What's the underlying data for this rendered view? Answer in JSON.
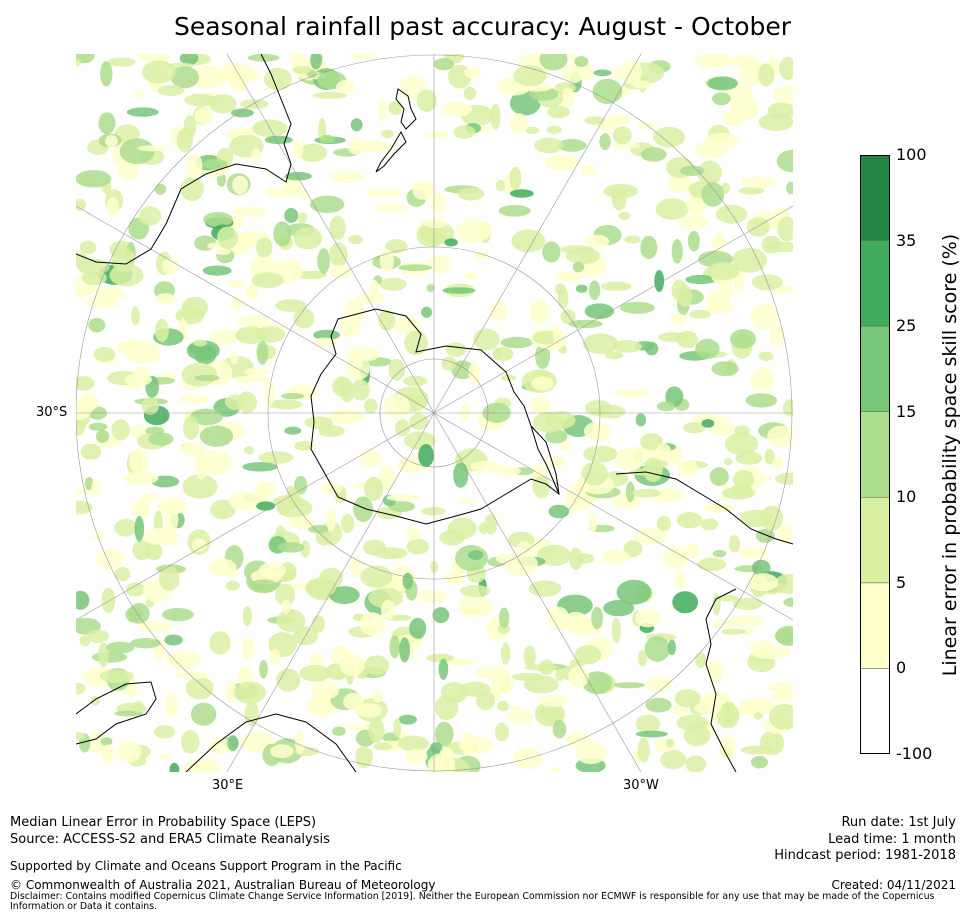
{
  "title": "Seasonal rainfall past accuracy: August - October",
  "map": {
    "projection": "south-polar stereographic",
    "labels": {
      "lat": "30°S",
      "lon_left": "30°E",
      "lon_right": "30°W"
    },
    "background": "#ffffff",
    "coastline_color": "#000000",
    "graticule_color": "#9a9a9a"
  },
  "colorbar": {
    "label": "Linear error in probability space skill score (%)",
    "ticks": [
      "100",
      "35",
      "25",
      "15",
      "10",
      "5",
      "0",
      "-100"
    ],
    "bins": [
      {
        "range": "-100 to 0",
        "color": "#ffffff"
      },
      {
        "range": "0 to 5",
        "color": "#ffffcc"
      },
      {
        "range": "5 to 10",
        "color": "#d9f0a3"
      },
      {
        "range": "10 to 15",
        "color": "#addd8e"
      },
      {
        "range": "15 to 25",
        "color": "#78c679"
      },
      {
        "range": "25 to 35",
        "color": "#41ab5d"
      },
      {
        "range": "35 to 100",
        "color": "#238443"
      }
    ]
  },
  "footer": {
    "line1": "Median Linear Error in Probability Space (LEPS)",
    "line2": "Source: ACCESS-S2 and ERA5 Climate Reanalysis",
    "support": "Supported by Climate and Oceans Support Program in the Pacific",
    "copyright": "© Commonwealth of Australia 2021, Australian Bureau of Meteorology",
    "disclaimer": "Disclaimer: Contains modified Copernicus Climate Change Service Information [2019]. Neither the European Commission nor ECMWF is responsible for any use that may be made of the Copernicus Information or Data it contains.",
    "run_date": "Run date: 1st July",
    "lead_time": "Lead time: 1 month",
    "hindcast": "Hindcast period: 1981-2018",
    "created": "Created: 04/11/2021"
  }
}
